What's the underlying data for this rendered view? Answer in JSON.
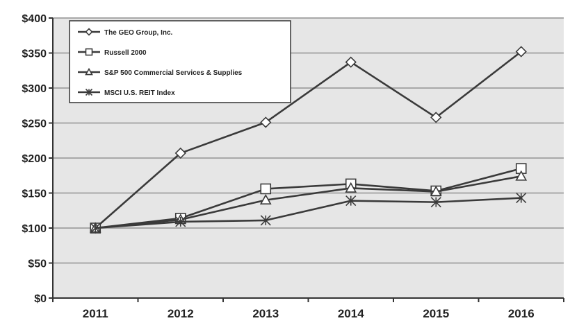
{
  "chart_data": {
    "type": "line",
    "categories": [
      "2011",
      "2012",
      "2013",
      "2014",
      "2015",
      "2016"
    ],
    "y_ticks": [
      "$0",
      "$50",
      "$100",
      "$150",
      "$200",
      "$250",
      "$300",
      "$350",
      "$400"
    ],
    "ylim": [
      0,
      400
    ],
    "grid": true,
    "legend_position": "top-left",
    "series": [
      {
        "name": "The GEO Group, Inc.",
        "marker": "diamond",
        "values": [
          100,
          207,
          251,
          337,
          258,
          352
        ]
      },
      {
        "name": "Russell 2000",
        "marker": "square",
        "values": [
          100,
          114,
          156,
          163,
          153,
          185
        ]
      },
      {
        "name": "S&P 500 Commercial Services & Supplies",
        "marker": "triangle",
        "values": [
          100,
          112,
          140,
          157,
          152,
          174
        ]
      },
      {
        "name": "MSCI U.S. REIT Index",
        "marker": "asterisk",
        "values": [
          100,
          109,
          111,
          139,
          137,
          143
        ]
      }
    ],
    "colors": {
      "plot_background": "#e6e6e6",
      "gridline": "#a8a8a8",
      "series_line": "#3a3a3a",
      "axis": "#333333"
    }
  }
}
